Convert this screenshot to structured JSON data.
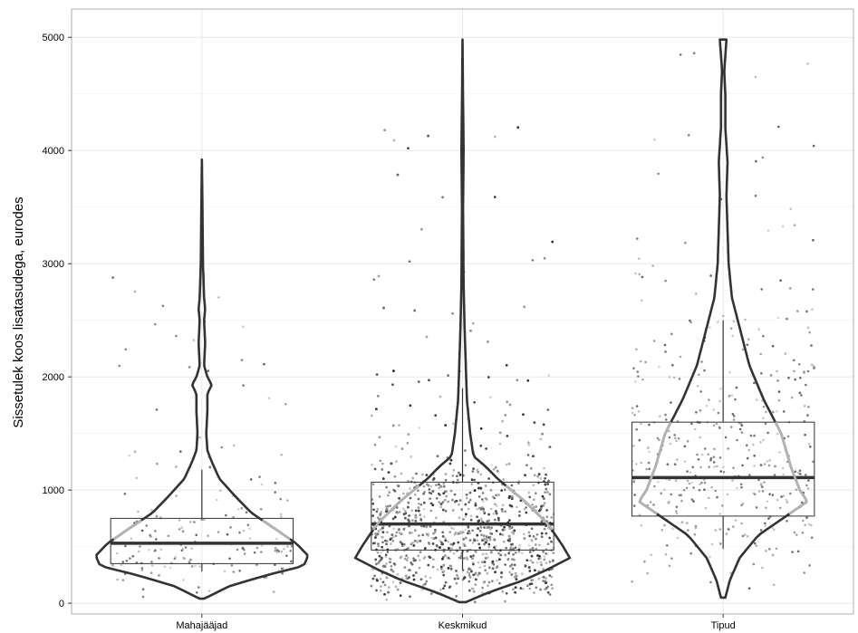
{
  "chart_data": {
    "type": "violin",
    "title": "",
    "xlabel": "",
    "ylabel": "Sissetulek koos lisatasudega, eurodes",
    "ylim": [
      -95,
      5250
    ],
    "yticks": [
      0,
      1000,
      2000,
      3000,
      4000,
      5000
    ],
    "grid": true,
    "categories": [
      "Mahajääjad",
      "Keskmikud",
      "Tipud"
    ],
    "boxplots": [
      {
        "category": "Mahajääjad",
        "q1": 350,
        "median": 530,
        "q3": 750,
        "whisker_low": 280,
        "whisker_high": 1180
      },
      {
        "category": "Keskmikud",
        "q1": 470,
        "median": 700,
        "q3": 1070,
        "whisker_low": 300,
        "whisker_high": 1900
      },
      {
        "category": "Tipud",
        "q1": 770,
        "median": 1110,
        "q3": 1600,
        "whisker_low": 480,
        "whisker_high": 2500
      }
    ],
    "violins": [
      {
        "category": "Mahajääjad",
        "min": 40,
        "max": 3920,
        "profile": [
          [
            40,
            0.02
          ],
          [
            150,
            0.25
          ],
          [
            250,
            0.6
          ],
          [
            330,
            0.93
          ],
          [
            420,
            0.97
          ],
          [
            530,
            0.86
          ],
          [
            650,
            0.68
          ],
          [
            800,
            0.45
          ],
          [
            950,
            0.3
          ],
          [
            1100,
            0.16
          ],
          [
            1250,
            0.09
          ],
          [
            1350,
            0.05
          ],
          [
            1500,
            0.04
          ],
          [
            1700,
            0.05
          ],
          [
            1850,
            0.05
          ],
          [
            1930,
            0.09
          ],
          [
            2000,
            0.05
          ],
          [
            2100,
            0.02
          ],
          [
            2300,
            0.03
          ],
          [
            2500,
            0.02
          ],
          [
            2600,
            0.03
          ],
          [
            2700,
            0.02
          ],
          [
            3000,
            0.01
          ],
          [
            3500,
            0.005
          ],
          [
            3920,
            0.0
          ]
        ]
      },
      {
        "category": "Keskmikud",
        "min": 10,
        "max": 4980,
        "profile": [
          [
            10,
            0.03
          ],
          [
            100,
            0.25
          ],
          [
            200,
            0.55
          ],
          [
            300,
            0.78
          ],
          [
            400,
            0.98
          ],
          [
            500,
            0.92
          ],
          [
            700,
            0.78
          ],
          [
            900,
            0.57
          ],
          [
            1100,
            0.32
          ],
          [
            1200,
            0.22
          ],
          [
            1300,
            0.1
          ],
          [
            1500,
            0.07
          ],
          [
            1800,
            0.04
          ],
          [
            2100,
            0.03
          ],
          [
            2400,
            0.02
          ],
          [
            2800,
            0.01
          ],
          [
            3500,
            0.005
          ],
          [
            4000,
            0.01
          ],
          [
            4500,
            0.004
          ],
          [
            4980,
            0.0
          ]
        ]
      },
      {
        "category": "Tipud",
        "min": 50,
        "max": 4980,
        "profile": [
          [
            50,
            0.02
          ],
          [
            200,
            0.06
          ],
          [
            400,
            0.15
          ],
          [
            600,
            0.32
          ],
          [
            800,
            0.62
          ],
          [
            900,
            0.77
          ],
          [
            1000,
            0.7
          ],
          [
            1200,
            0.62
          ],
          [
            1500,
            0.53
          ],
          [
            1800,
            0.37
          ],
          [
            2100,
            0.24
          ],
          [
            2400,
            0.16
          ],
          [
            2700,
            0.08
          ],
          [
            3000,
            0.05
          ],
          [
            3300,
            0.04
          ],
          [
            3600,
            0.03
          ],
          [
            3900,
            0.04
          ],
          [
            4200,
            0.02
          ],
          [
            4500,
            0.02
          ],
          [
            4700,
            0.01
          ],
          [
            4980,
            0.03
          ]
        ]
      }
    ],
    "jitter_point_counts": [
      180,
      2600,
      420
    ]
  }
}
